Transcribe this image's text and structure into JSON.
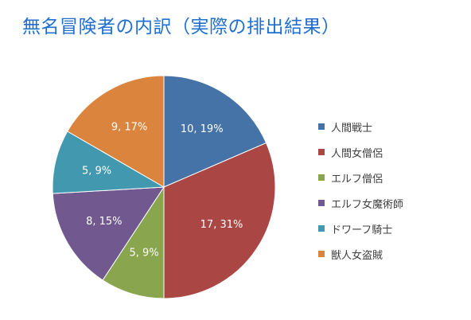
{
  "chart_data": {
    "type": "pie",
    "title": "無名冒険者の内訳（実際の排出結果）",
    "categories": [
      "人間戦士",
      "人間女僧侶",
      "エルフ僧侶",
      "エルフ女魔術師",
      "ドワーフ騎士",
      "獣人女盗賊"
    ],
    "values": [
      10,
      17,
      5,
      8,
      5,
      9
    ],
    "data_labels": [
      "10, 19%",
      "17, 31%",
      "5, 9%",
      "8, 15%",
      "5, 9%",
      "9, 17%"
    ],
    "colors": [
      "#4572a7",
      "#aa4643",
      "#89a54e",
      "#71588f",
      "#4198af",
      "#db843d"
    ],
    "legend": "right",
    "start_angle": "12 o'clock",
    "direction": "clockwise"
  }
}
